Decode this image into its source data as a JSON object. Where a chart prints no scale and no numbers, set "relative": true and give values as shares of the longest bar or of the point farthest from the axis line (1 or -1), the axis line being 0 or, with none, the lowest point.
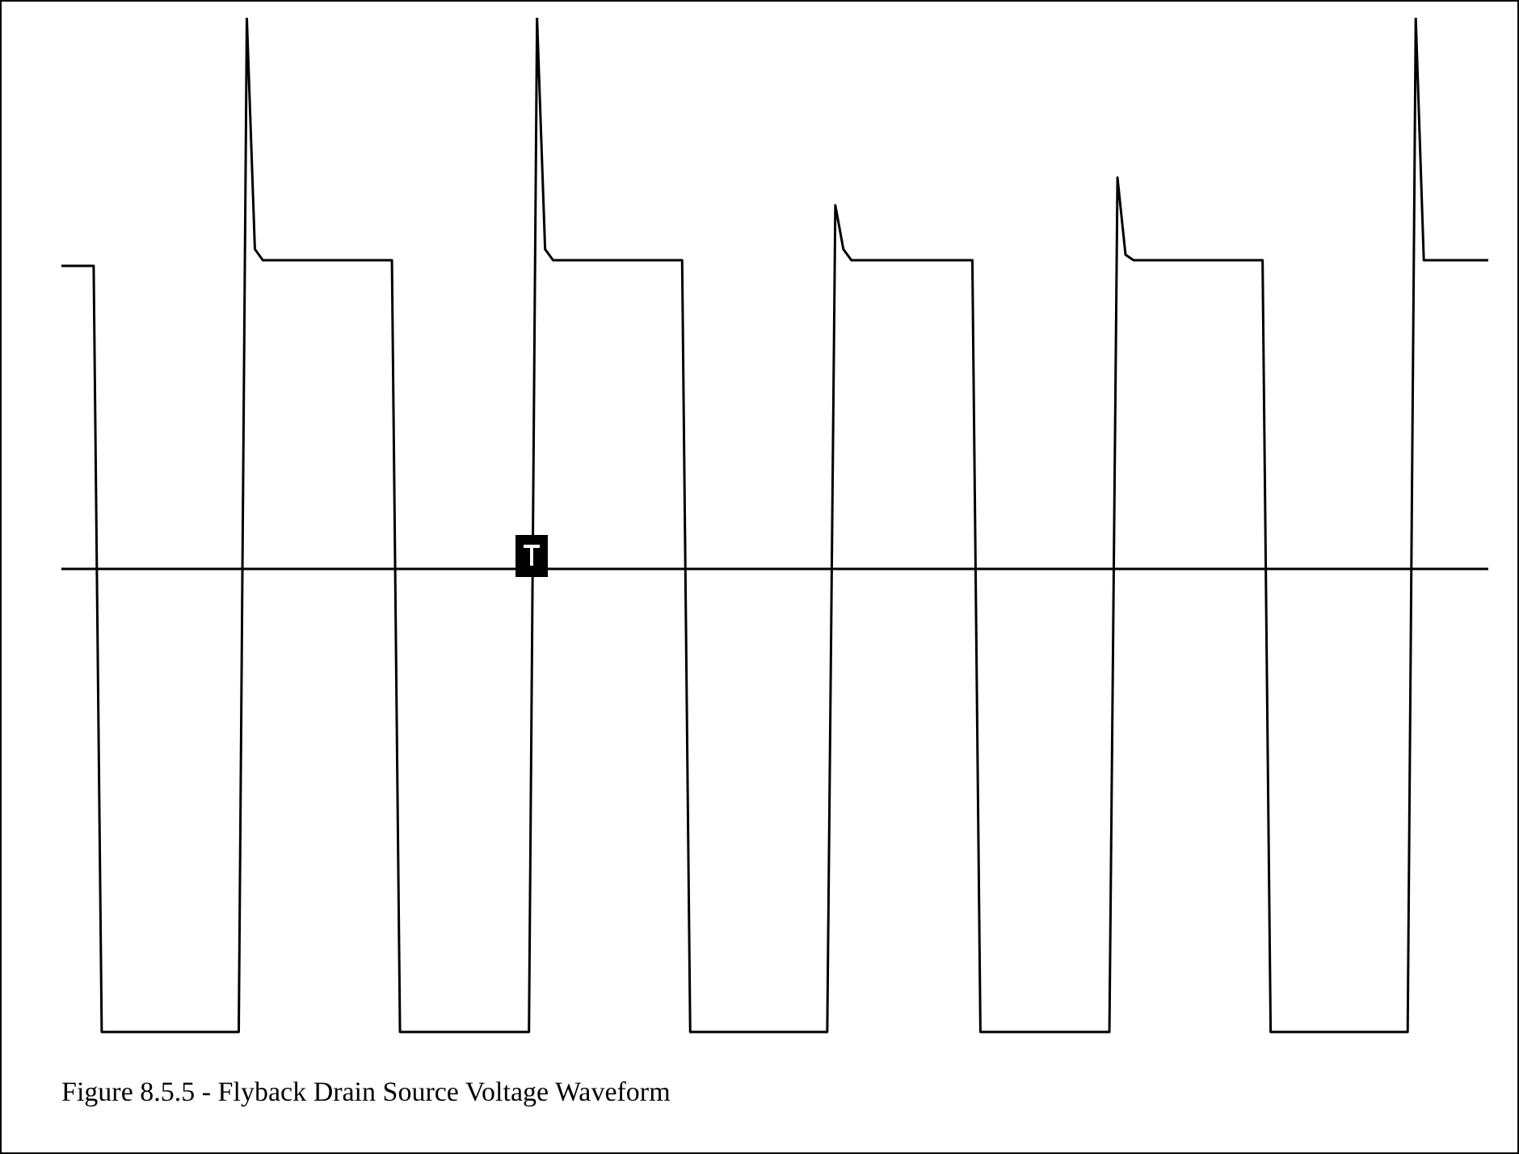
{
  "chart_data": {
    "type": "line",
    "relative": true,
    "color": "#000000",
    "annotations": [
      "Figure 8.5.5 - Flyback Drain Source Voltage Waveform"
    ],
    "categories": [
      null,
      null,
      null,
      null,
      null,
      null,
      null,
      null,
      null,
      null,
      null,
      null,
      null,
      null,
      null,
      null,
      null,
      null,
      null,
      null,
      null,
      null,
      null,
      null,
      null,
      null,
      null,
      null,
      null,
      null,
      null,
      null,
      null,
      null,
      null,
      null,
      null,
      null,
      null,
      null,
      null,
      null,
      null,
      null,
      null,
      null,
      null,
      null,
      null,
      null,
      null,
      null,
      null,
      null,
      null,
      null,
      null,
      null,
      null,
      null,
      null,
      null,
      null,
      null,
      null,
      null,
      null,
      null,
      null,
      null,
      null,
      null,
      null,
      null,
      null,
      null,
      null,
      null,
      null,
      null,
      null,
      null,
      null,
      null,
      null,
      null,
      null,
      null,
      null,
      null,
      null,
      null,
      null,
      null,
      null,
      null,
      null,
      null,
      null,
      null,
      null,
      null,
      null,
      null,
      null,
      null,
      null,
      null,
      null,
      null,
      null,
      null,
      null,
      null,
      null,
      null,
      null,
      null,
      null,
      null,
      null,
      null,
      null,
      null,
      null,
      null,
      null,
      null,
      null,
      null,
      null,
      null,
      null,
      null,
      null,
      null,
      null,
      null,
      null,
      null,
      null,
      null,
      null,
      null,
      null,
      null,
      null,
      null,
      null,
      null,
      null,
      null,
      null,
      null,
      null,
      null,
      null,
      null,
      null,
      null,
      null,
      null,
      null,
      null,
      null,
      null,
      null,
      null,
      null,
      null,
      null,
      null,
      null,
      null,
      null,
      null,
      null,
      null
    ],
    "values": [
      0.55,
      0.55,
      0.55,
      0.55,
      0.55,
      -0.84,
      -0.84,
      -0.84,
      -0.84,
      -0.84,
      -0.84,
      -0.84,
      -0.84,
      -0.84,
      -0.84,
      -0.84,
      -0.84,
      -0.84,
      -0.84,
      -0.84,
      -0.84,
      -0.84,
      -0.84,
      1.0,
      0.58,
      0.56,
      0.56,
      0.56,
      0.56,
      0.56,
      0.56,
      0.56,
      0.56,
      0.56,
      0.56,
      0.56,
      0.56,
      0.56,
      0.56,
      0.56,
      0.56,
      0.56,
      -0.84,
      -0.84,
      -0.84,
      -0.84,
      -0.84,
      -0.84,
      -0.84,
      -0.84,
      -0.84,
      -0.84,
      -0.84,
      -0.84,
      -0.84,
      -0.84,
      -0.84,
      -0.84,
      -0.84,
      1.0,
      0.58,
      0.56,
      0.56,
      0.56,
      0.56,
      0.56,
      0.56,
      0.56,
      0.56,
      0.56,
      0.56,
      0.56,
      0.56,
      0.56,
      0.56,
      0.56,
      0.56,
      0.56,
      -0.84,
      -0.84,
      -0.84,
      -0.84,
      -0.84,
      -0.84,
      -0.84,
      -0.84,
      -0.84,
      -0.84,
      -0.84,
      -0.84,
      -0.84,
      -0.84,
      -0.84,
      -0.84,
      -0.84,
      -0.84,
      0.66,
      0.58,
      0.56,
      0.56,
      0.56,
      0.56,
      0.56,
      0.56,
      0.56,
      0.56,
      0.56,
      0.56,
      0.56,
      0.56,
      0.56,
      0.56,
      0.56,
      0.56,
      -0.84,
      -0.84,
      -0.84,
      -0.84,
      -0.84,
      -0.84,
      -0.84,
      -0.84,
      -0.84,
      -0.84,
      -0.84,
      -0.84,
      -0.84,
      -0.84,
      -0.84,
      -0.84,
      -0.84,
      0.71,
      0.57,
      0.56,
      0.56,
      0.56,
      0.56,
      0.56,
      0.56,
      0.56,
      0.56,
      0.56,
      0.56,
      0.56,
      0.56,
      0.56,
      0.56,
      0.56,
      0.56,
      0.56,
      -0.84,
      -0.84,
      -0.84,
      -0.84,
      -0.84,
      -0.84,
      -0.84,
      -0.84,
      -0.84,
      -0.84,
      -0.84,
      -0.84,
      -0.84,
      -0.84,
      -0.84,
      -0.84,
      -0.84,
      -0.84,
      1.0,
      0.56,
      0.56,
      0.56,
      0.56,
      0.56,
      0.56,
      0.56,
      0.56,
      0.56
    ]
  }
}
